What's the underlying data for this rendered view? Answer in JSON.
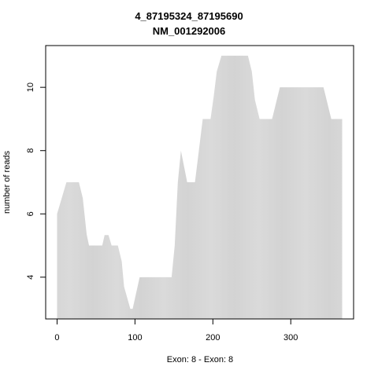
{
  "chart_data": {
    "type": "area",
    "title": "4_87195324_87195690",
    "subtitle": "NM_001292006",
    "x_label": "Exon: 8 - Exon: 8",
    "y_label": "number of reads",
    "x": [
      0,
      12,
      28,
      33,
      38,
      41,
      58,
      61,
      66,
      70,
      78,
      83,
      86,
      94,
      97,
      106,
      147,
      151,
      155,
      159,
      167,
      177,
      187,
      197,
      201,
      205,
      211,
      245,
      250,
      254,
      260,
      276,
      286,
      342,
      352,
      366
    ],
    "values": [
      6,
      7,
      7,
      6.5,
      5.35,
      5,
      5,
      5.33,
      5.33,
      5,
      5,
      4.5,
      3.7,
      3,
      3,
      4,
      4,
      5,
      7,
      8,
      7,
      7,
      9,
      9,
      9.7,
      10.5,
      11,
      11,
      10.5,
      9.6,
      9,
      9,
      10,
      10,
      9,
      9
    ],
    "color": "#d3d3d3",
    "xlim": [
      -14.64,
      380.64
    ],
    "xticks": [
      0,
      100,
      200,
      300
    ],
    "ylim": [
      2.68,
      11.32
    ],
    "yticks": [
      4,
      6,
      8,
      10
    ]
  }
}
